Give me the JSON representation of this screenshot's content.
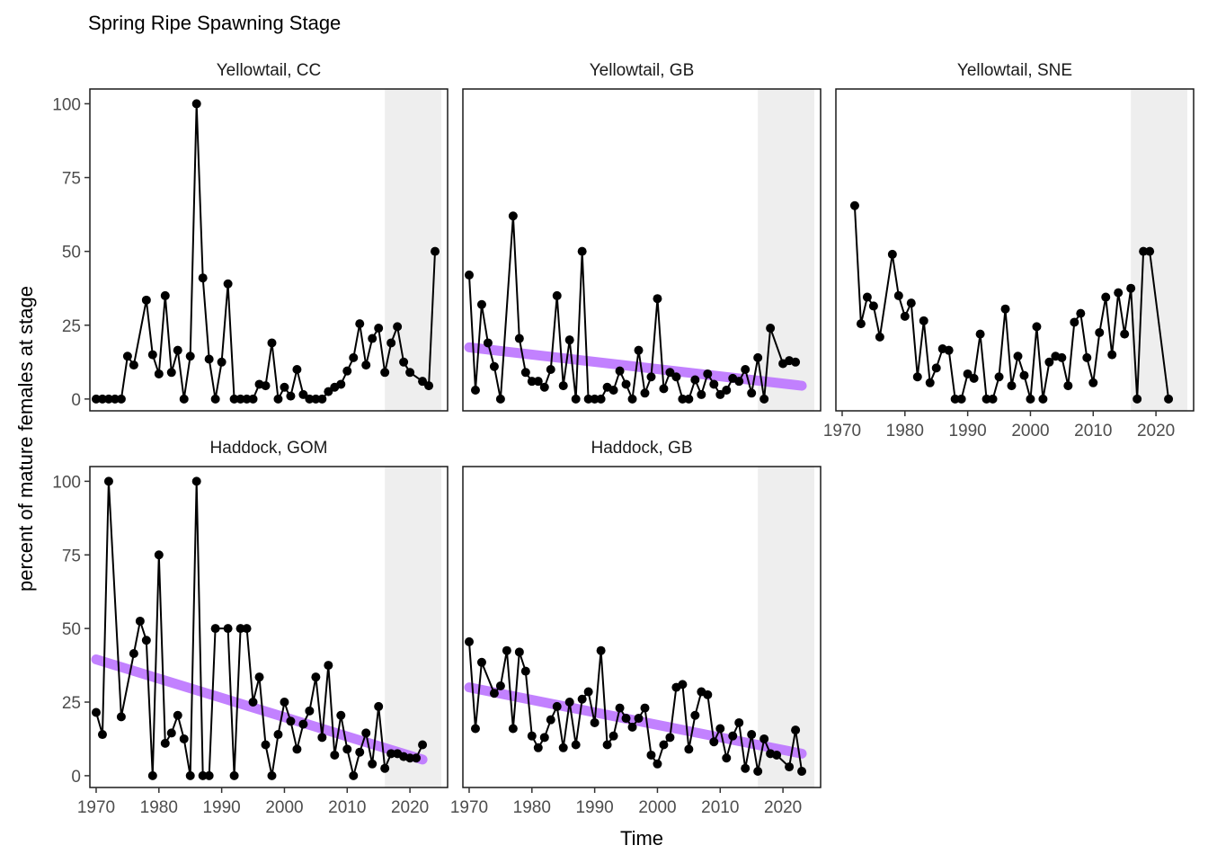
{
  "chart_data": {
    "type": "line",
    "title": "Spring Ripe Spawning Stage",
    "xlabel": "Time",
    "ylabel": "percent of mature females at stage",
    "xlim": [
      1969,
      2026
    ],
    "ylim": [
      -4,
      105
    ],
    "x_ticks": [
      1970,
      1980,
      1990,
      2000,
      2010,
      2020
    ],
    "y_ticks": [
      0,
      25,
      50,
      75,
      100
    ],
    "shaded_region": [
      2016,
      2025
    ],
    "colors": {
      "line": "#000000",
      "point": "#000000",
      "trend": "#bf7bff",
      "shade": "#eeeeee",
      "panel_border": "#1a1a1a"
    },
    "panels": [
      {
        "label": "Yellowtail, CC",
        "points": [
          [
            1970,
            0
          ],
          [
            1971,
            0
          ],
          [
            1972,
            0
          ],
          [
            1973,
            0
          ],
          [
            1974,
            0
          ],
          [
            1975,
            14.5
          ],
          [
            1976,
            11.5
          ],
          [
            1978,
            33.5
          ],
          [
            1979,
            15
          ],
          [
            1980,
            8.5
          ],
          [
            1981,
            35
          ],
          [
            1982,
            9
          ],
          [
            1983,
            16.5
          ],
          [
            1984,
            0
          ],
          [
            1985,
            14.5
          ],
          [
            1986,
            100
          ],
          [
            1987,
            41
          ],
          [
            1988,
            13.5
          ],
          [
            1989,
            0
          ],
          [
            1990,
            12.5
          ],
          [
            1991,
            39
          ],
          [
            1992,
            0
          ],
          [
            1993,
            0
          ],
          [
            1994,
            0
          ],
          [
            1995,
            0
          ],
          [
            1996,
            5
          ],
          [
            1997,
            4.5
          ],
          [
            1998,
            19
          ],
          [
            1999,
            0
          ],
          [
            2000,
            4
          ],
          [
            2001,
            1
          ],
          [
            2002,
            10
          ],
          [
            2003,
            1.5
          ],
          [
            2004,
            0
          ],
          [
            2005,
            0
          ],
          [
            2006,
            0
          ],
          [
            2007,
            2.5
          ],
          [
            2008,
            4
          ],
          [
            2009,
            5
          ],
          [
            2010,
            9.5
          ],
          [
            2011,
            14
          ],
          [
            2012,
            25.5
          ],
          [
            2013,
            11.5
          ],
          [
            2014,
            20.5
          ],
          [
            2015,
            24
          ],
          [
            2016,
            9
          ],
          [
            2017,
            19
          ],
          [
            2018,
            24.5
          ],
          [
            2019,
            12.5
          ],
          [
            2020,
            9
          ],
          [
            2022,
            6
          ],
          [
            2023,
            4.5
          ],
          [
            2024,
            50
          ]
        ],
        "trend": null
      },
      {
        "label": "Yellowtail, GB",
        "points": [
          [
            1970,
            42
          ],
          [
            1971,
            3
          ],
          [
            1972,
            32
          ],
          [
            1973,
            19
          ],
          [
            1974,
            11
          ],
          [
            1975,
            0
          ],
          [
            1977,
            62
          ],
          [
            1978,
            20.5
          ],
          [
            1979,
            9
          ],
          [
            1980,
            6
          ],
          [
            1981,
            6
          ],
          [
            1982,
            4
          ],
          [
            1983,
            10
          ],
          [
            1984,
            35
          ],
          [
            1985,
            4.5
          ],
          [
            1986,
            20
          ],
          [
            1987,
            0
          ],
          [
            1988,
            50
          ],
          [
            1989,
            0
          ],
          [
            1990,
            0
          ],
          [
            1991,
            0
          ],
          [
            1992,
            4
          ],
          [
            1993,
            3
          ],
          [
            1994,
            9.5
          ],
          [
            1995,
            5
          ],
          [
            1996,
            0
          ],
          [
            1997,
            16.5
          ],
          [
            1998,
            2
          ],
          [
            1999,
            7.5
          ],
          [
            2000,
            34
          ],
          [
            2001,
            3.5
          ],
          [
            2002,
            9
          ],
          [
            2003,
            7.5
          ],
          [
            2004,
            0
          ],
          [
            2005,
            0
          ],
          [
            2006,
            6.5
          ],
          [
            2007,
            1.5
          ],
          [
            2008,
            8.5
          ],
          [
            2009,
            5
          ],
          [
            2010,
            1.5
          ],
          [
            2011,
            3
          ],
          [
            2012,
            7
          ],
          [
            2013,
            6
          ],
          [
            2014,
            10
          ],
          [
            2015,
            2
          ],
          [
            2016,
            14
          ],
          [
            2017,
            0
          ],
          [
            2018,
            24
          ],
          [
            2020,
            12
          ],
          [
            2021,
            13
          ],
          [
            2022,
            12.5
          ]
        ],
        "trend": [
          [
            1970,
            17.5
          ],
          [
            2023,
            4.5
          ]
        ]
      },
      {
        "label": "Yellowtail, SNE",
        "points": [
          [
            1972,
            65.5
          ],
          [
            1973,
            25.5
          ],
          [
            1974,
            34.5
          ],
          [
            1975,
            31.5
          ],
          [
            1976,
            21
          ],
          [
            1978,
            49
          ],
          [
            1979,
            35
          ],
          [
            1980,
            28
          ],
          [
            1981,
            32.5
          ],
          [
            1982,
            7.5
          ],
          [
            1983,
            26.5
          ],
          [
            1984,
            5.5
          ],
          [
            1985,
            10.5
          ],
          [
            1986,
            17
          ],
          [
            1987,
            16.5
          ],
          [
            1988,
            0
          ],
          [
            1989,
            0
          ],
          [
            1990,
            8.5
          ],
          [
            1991,
            7
          ],
          [
            1992,
            22
          ],
          [
            1993,
            0
          ],
          [
            1994,
            0
          ],
          [
            1995,
            7.5
          ],
          [
            1996,
            30.5
          ],
          [
            1997,
            4.5
          ],
          [
            1998,
            14.5
          ],
          [
            1999,
            8
          ],
          [
            2000,
            0
          ],
          [
            2001,
            24.5
          ],
          [
            2002,
            0
          ],
          [
            2003,
            12.5
          ],
          [
            2004,
            14.5
          ],
          [
            2005,
            14
          ],
          [
            2006,
            4.5
          ],
          [
            2007,
            26
          ],
          [
            2008,
            29
          ],
          [
            2009,
            14
          ],
          [
            2010,
            5.5
          ],
          [
            2011,
            22.5
          ],
          [
            2012,
            34.5
          ],
          [
            2013,
            15
          ],
          [
            2014,
            36
          ],
          [
            2015,
            22
          ],
          [
            2016,
            37.5
          ],
          [
            2017,
            0
          ],
          [
            2018,
            50
          ],
          [
            2019,
            50
          ],
          [
            2022,
            0
          ]
        ],
        "trend": null
      },
      {
        "label": "Haddock, GOM",
        "points": [
          [
            1970,
            21.5
          ],
          [
            1971,
            14
          ],
          [
            1972,
            100
          ],
          [
            1974,
            20
          ],
          [
            1976,
            41.5
          ],
          [
            1977,
            52.5
          ],
          [
            1978,
            46
          ],
          [
            1979,
            0
          ],
          [
            1980,
            75
          ],
          [
            1981,
            11
          ],
          [
            1982,
            14.5
          ],
          [
            1983,
            20.5
          ],
          [
            1984,
            12.5
          ],
          [
            1985,
            0
          ],
          [
            1986,
            100
          ],
          [
            1987,
            0
          ],
          [
            1988,
            0
          ],
          [
            1989,
            50
          ],
          [
            1991,
            50
          ],
          [
            1992,
            0
          ],
          [
            1993,
            50
          ],
          [
            1994,
            50
          ],
          [
            1995,
            25
          ],
          [
            1996,
            33.5
          ],
          [
            1997,
            10.5
          ],
          [
            1998,
            0
          ],
          [
            1999,
            14
          ],
          [
            2000,
            25
          ],
          [
            2001,
            18.5
          ],
          [
            2002,
            9
          ],
          [
            2003,
            17.5
          ],
          [
            2004,
            22
          ],
          [
            2005,
            33.5
          ],
          [
            2006,
            13
          ],
          [
            2007,
            37.5
          ],
          [
            2008,
            7
          ],
          [
            2009,
            20.5
          ],
          [
            2010,
            9
          ],
          [
            2011,
            0
          ],
          [
            2012,
            8
          ],
          [
            2013,
            14.5
          ],
          [
            2014,
            4
          ],
          [
            2015,
            23.5
          ],
          [
            2016,
            2.5
          ],
          [
            2017,
            7.5
          ],
          [
            2018,
            7.5
          ],
          [
            2019,
            6.5
          ],
          [
            2020,
            6
          ],
          [
            2021,
            6
          ],
          [
            2022,
            10.5
          ]
        ],
        "trend": [
          [
            1970,
            39.5
          ],
          [
            2022,
            5.5
          ]
        ]
      },
      {
        "label": "Haddock, GB",
        "points": [
          [
            1970,
            45.5
          ],
          [
            1971,
            16
          ],
          [
            1972,
            38.5
          ],
          [
            1974,
            28
          ],
          [
            1975,
            30.5
          ],
          [
            1976,
            42.5
          ],
          [
            1977,
            16
          ],
          [
            1978,
            42
          ],
          [
            1979,
            35.5
          ],
          [
            1980,
            13.5
          ],
          [
            1981,
            9.5
          ],
          [
            1982,
            13
          ],
          [
            1983,
            19
          ],
          [
            1984,
            23.5
          ],
          [
            1985,
            9.5
          ],
          [
            1986,
            25
          ],
          [
            1987,
            10.5
          ],
          [
            1988,
            26
          ],
          [
            1989,
            28.5
          ],
          [
            1990,
            18
          ],
          [
            1991,
            42.5
          ],
          [
            1992,
            10.5
          ],
          [
            1993,
            13.5
          ],
          [
            1994,
            23
          ],
          [
            1995,
            19.5
          ],
          [
            1996,
            16.5
          ],
          [
            1997,
            19.5
          ],
          [
            1998,
            23
          ],
          [
            1999,
            7
          ],
          [
            2000,
            4
          ],
          [
            2001,
            10.5
          ],
          [
            2002,
            13
          ],
          [
            2003,
            30
          ],
          [
            2004,
            31
          ],
          [
            2005,
            9
          ],
          [
            2006,
            20.5
          ],
          [
            2007,
            28.5
          ],
          [
            2008,
            27.5
          ],
          [
            2009,
            11.5
          ],
          [
            2010,
            16
          ],
          [
            2011,
            6
          ],
          [
            2012,
            13.5
          ],
          [
            2013,
            18
          ],
          [
            2014,
            2.5
          ],
          [
            2015,
            14
          ],
          [
            2016,
            1.5
          ],
          [
            2017,
            12.5
          ],
          [
            2018,
            7.5
          ],
          [
            2019,
            7
          ],
          [
            2021,
            3
          ],
          [
            2022,
            15.5
          ],
          [
            2023,
            1.5
          ]
        ],
        "trend": [
          [
            1970,
            30
          ],
          [
            2023,
            7.5
          ]
        ]
      }
    ]
  }
}
